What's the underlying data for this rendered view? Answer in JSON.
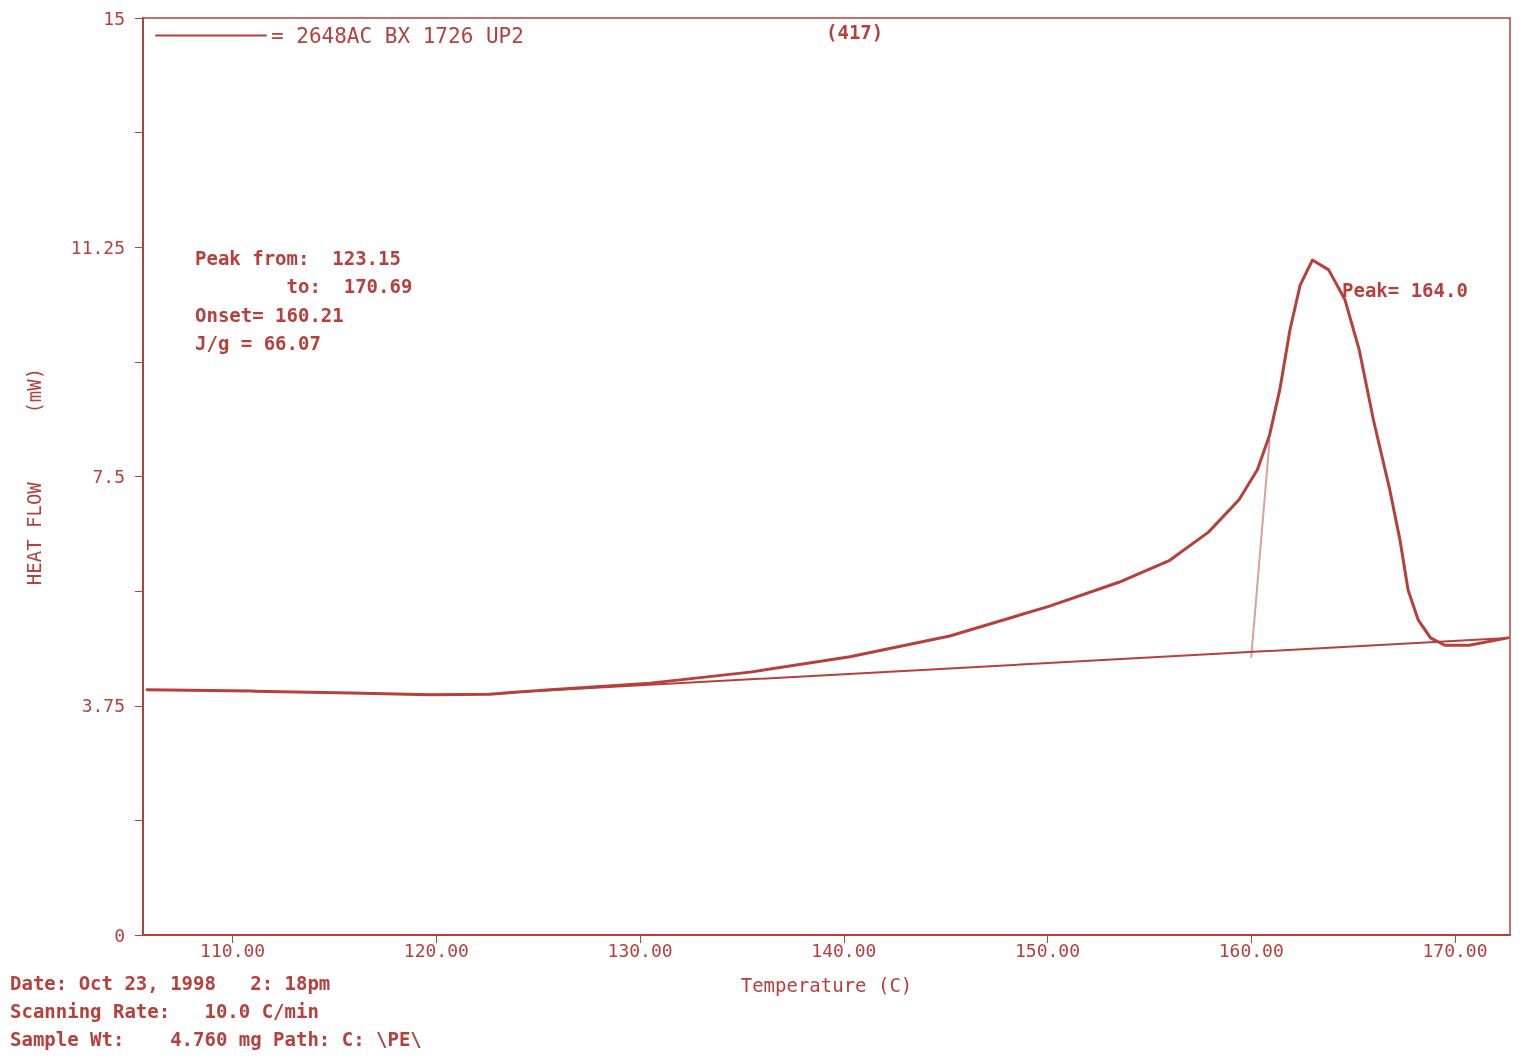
{
  "chart_data": {
    "type": "line",
    "xlabel": "Temperature (C)",
    "ylabel": "HEAT FLOW      (mW)",
    "xlim": [
      105.6,
      172.7
    ],
    "ylim": [
      0,
      15
    ],
    "xticks": [
      {
        "value": 110,
        "label": "110.00"
      },
      {
        "value": 120,
        "label": "120.00"
      },
      {
        "value": 130,
        "label": "130.00"
      },
      {
        "value": 140,
        "label": "140.00"
      },
      {
        "value": 150,
        "label": "150.00"
      },
      {
        "value": 160,
        "label": "160.00"
      },
      {
        "value": 170,
        "label": "170.00"
      }
    ],
    "yticks": [
      0,
      {
        "value": 1.875,
        "label": null
      },
      3.75,
      {
        "value": 5.625,
        "label": null
      },
      7.5,
      {
        "value": 9.375,
        "label": null
      },
      11.25,
      {
        "value": 13.125,
        "label": null
      },
      15
    ],
    "grid": false,
    "legend": "top left",
    "marker": "none",
    "line_style": "solid",
    "series": [
      {
        "name": "= 2648AC BX 1726 UP2",
        "color": "#b5403c",
        "x": [
          105.8,
          110.9,
          115.8,
          119.7,
          122.6,
          125.6,
          130.5,
          135.4,
          140.3,
          145.2,
          150.1,
          153.5,
          156.0,
          157.9,
          159.4,
          160.3,
          160.9,
          161.4,
          161.9,
          162.4,
          163.0,
          163.8,
          164.6,
          165.3,
          166.0,
          166.8,
          167.3,
          167.7,
          168.2,
          168.8,
          169.5,
          170.7,
          172.6
        ],
        "values": [
          4.01,
          3.99,
          3.96,
          3.93,
          3.94,
          4.01,
          4.12,
          4.3,
          4.55,
          4.89,
          5.38,
          5.77,
          6.13,
          6.59,
          7.12,
          7.61,
          8.18,
          8.92,
          9.9,
          10.63,
          11.04,
          10.88,
          10.39,
          9.57,
          8.42,
          7.28,
          6.46,
          5.64,
          5.15,
          4.86,
          4.74,
          4.74,
          4.86
        ]
      },
      {
        "color": "#b5403c",
        "x": [
          123.15,
          172.6
        ],
        "values": [
          3.96,
          4.86
        ]
      },
      {
        "color": "#d9a09c",
        "x": [
          160.0,
          160.9
        ],
        "values": [
          4.55,
          8.1
        ]
      }
    ],
    "annotations": [
      "(417)",
      "Peak from:  123.15",
      "        to:  170.69",
      "Onset= 160.21",
      "J/g = 66.07",
      "Peak= 164.0",
      "Date: Oct 23, 1998   2: 18pm",
      "Scanning Rate:   10.0 C/min",
      "Sample Wt:    4.760 mg Path: C: \\PE\\"
    ]
  }
}
